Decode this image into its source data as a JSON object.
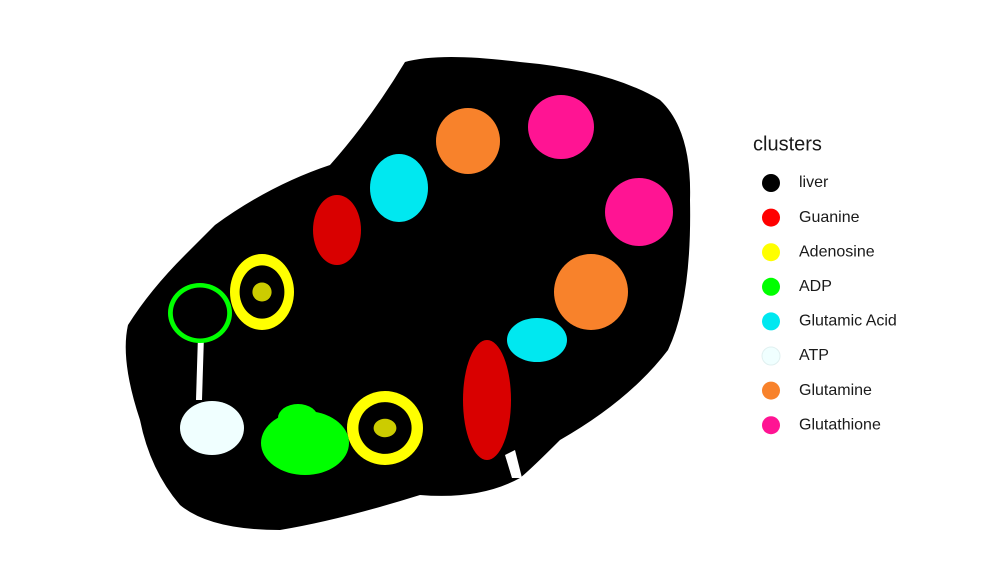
{
  "chart_data": {
    "type": "spatial",
    "legend_title": "clusters",
    "legend": "right",
    "series": [
      {
        "name": "liver",
        "color": "#000000"
      },
      {
        "name": "Guanine",
        "color": "#ff0000"
      },
      {
        "name": "Adenosine",
        "color": "#ffff00"
      },
      {
        "name": "ADP",
        "color": "#00ff00"
      },
      {
        "name": "Glutamic Acid",
        "color": "#00e8f0"
      },
      {
        "name": "ATP",
        "color": "#f0ffff"
      },
      {
        "name": "Glutamine",
        "color": "#f8822b"
      },
      {
        "name": "Glutathione",
        "color": "#ff1493"
      }
    ]
  }
}
